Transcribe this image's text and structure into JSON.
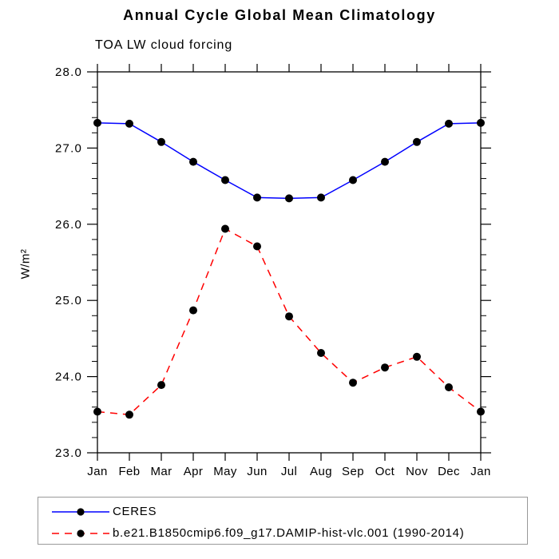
{
  "page": {
    "background": "#ffffff"
  },
  "chart_data": {
    "type": "line",
    "title": "Annual Cycle Global Mean Climatology",
    "subtitle": "TOA LW cloud forcing",
    "ylabel": "W/m²",
    "xlabel": "",
    "categories": [
      "Jan",
      "Feb",
      "Mar",
      "Apr",
      "May",
      "Jun",
      "Jul",
      "Aug",
      "Sep",
      "Oct",
      "Nov",
      "Dec",
      "Jan"
    ],
    "ylim": [
      23.0,
      28.0
    ],
    "ytick_major_interval": 1.0,
    "ytick_minor_interval": 0.2,
    "ytick_labels": [
      "23.0",
      "24.0",
      "25.0",
      "26.0",
      "27.0",
      "28.0"
    ],
    "grid": false,
    "legend_position": "bottom-left-box",
    "axis_color": "#000000",
    "marker_color": "#000000",
    "series": [
      {
        "name": "CERES",
        "color": "#0000ff",
        "line_style": "solid",
        "marker": "filled-circle",
        "values": [
          27.33,
          27.32,
          27.08,
          26.82,
          26.58,
          26.35,
          26.34,
          26.35,
          26.58,
          26.82,
          27.08,
          27.32,
          27.33
        ]
      },
      {
        "name": "b.e21.B1850cmip6.f09_g17.DAMIP-hist-vlc.001 (1990-2014)",
        "color": "#ff0000",
        "line_style": "dashed",
        "marker": "filled-circle",
        "values": [
          23.54,
          23.5,
          23.89,
          24.87,
          25.94,
          25.71,
          24.79,
          24.31,
          23.92,
          24.12,
          24.26,
          23.86,
          23.54
        ]
      }
    ]
  }
}
